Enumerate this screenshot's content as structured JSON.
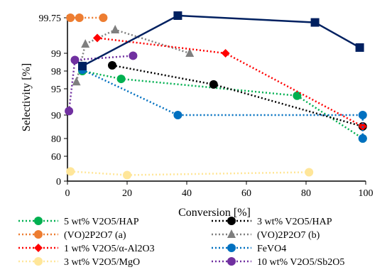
{
  "chart_data": {
    "type": "line",
    "title": "",
    "xlabel": "Conversion [%]",
    "ylabel": "Selectivity [%]",
    "xlim": [
      0,
      100
    ],
    "x_ticks": [
      0,
      20,
      40,
      60,
      80,
      100
    ],
    "y_ticks": [
      "0",
      "60",
      "80",
      "90",
      "95",
      "98",
      "99",
      "99.75"
    ],
    "y_scale": "nonlinear (log of 100 minus selectivity)",
    "grid": false,
    "legend_position": "bottom",
    "series": [
      {
        "name": "5 wt% V2O5/HAP",
        "color": "#00b050",
        "marker": "circle",
        "line": "dotted",
        "x": [
          5,
          18,
          77,
          99
        ],
        "y": [
          98.0,
          97.0,
          94.0,
          80.0
        ]
      },
      {
        "name": "3 wt% V2O5/HAP",
        "color": "#000000",
        "marker": "circle",
        "line": "dotted",
        "x": [
          15,
          49,
          99
        ],
        "y": [
          98.4,
          96.0,
          86.0
        ]
      },
      {
        "name": "(VO)2P2O7 (a)",
        "color": "#ed7d31",
        "marker": "circle",
        "line": "dotted",
        "x": [
          1,
          4,
          12
        ],
        "y": [
          99.75,
          99.75,
          99.75
        ]
      },
      {
        "name": "(VO)2P2O7 (b)",
        "color": "#7f7f7f",
        "marker": "triangle",
        "line": "dotted",
        "x": [
          3,
          6,
          16,
          41
        ],
        "y": [
          96.5,
          99.3,
          99.6,
          99.0
        ]
      },
      {
        "name": "1 wt% V2O5/α-Al2O3",
        "color": "#ff0000",
        "marker": "diamond",
        "line": "dotted",
        "x": [
          10,
          53,
          99
        ],
        "y": [
          99.45,
          99.0,
          86.0
        ]
      },
      {
        "name": "FeVO4",
        "color": "#0070c0",
        "marker": "circle",
        "line": "dotted",
        "x": [
          5,
          37,
          99,
          99
        ],
        "y": [
          98.1,
          90.0,
          90.0,
          80.0
        ]
      },
      {
        "name": "3 wt% V2O5/MgO",
        "color": "#ffe699",
        "marker": "circle",
        "line": "dotted",
        "x": [
          1,
          20,
          81
        ],
        "y": [
          30,
          20,
          28
        ]
      },
      {
        "name": "10 wt% V2O5/Sb2O5",
        "color": "#7030a0",
        "marker": "circle",
        "line": "dotted",
        "x": [
          0.5,
          2.5,
          22
        ],
        "y": [
          91.0,
          98.7,
          98.9
        ]
      },
      {
        "name": "",
        "color": "#002060",
        "marker": "square",
        "line": "solid",
        "x": [
          5,
          37,
          83,
          98
        ],
        "y": [
          98.35,
          99.77,
          99.7,
          99.2
        ]
      }
    ]
  }
}
